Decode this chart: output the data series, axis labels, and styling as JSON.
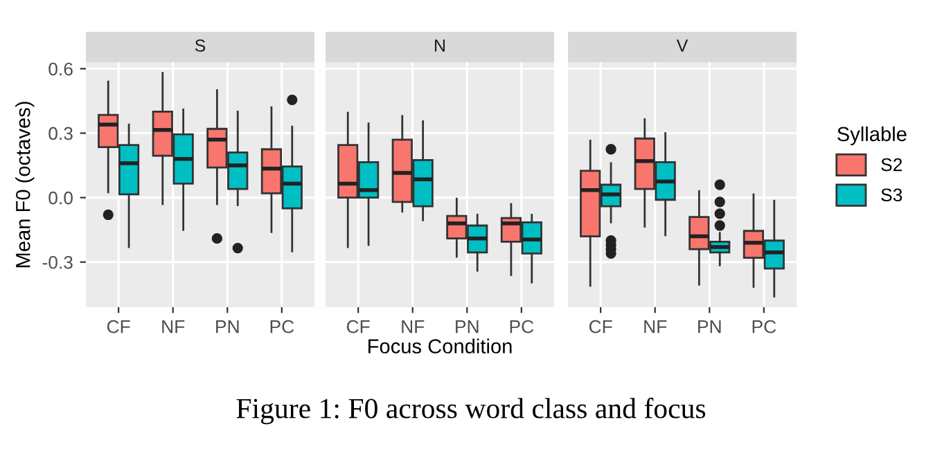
{
  "chart_data": [
    {
      "type": "box",
      "title": "S",
      "ylabel": "Mean F0 (octaves)",
      "legend_title": "Syllable",
      "legend": "right",
      "categories": [
        "CF",
        "NF",
        "PN",
        "PC"
      ],
      "ylim": [
        -0.51,
        0.63
      ],
      "yticks": [
        {
          "value": -0.3,
          "label": "-0.3"
        },
        {
          "value": 0,
          "label": "0.0"
        },
        0.3,
        0.6
      ],
      "grid": true,
      "series": [
        {
          "name": "S2",
          "color": "#f8766d",
          "boxes": [
            {
              "low": 0.025,
              "q1": 0.235,
              "median": 0.34,
              "q3": 0.385,
              "high": 0.54,
              "outliers": [
                -0.08
              ]
            },
            {
              "low": -0.03,
              "q1": 0.195,
              "median": 0.315,
              "q3": 0.4,
              "high": 0.58
            },
            {
              "low": -0.03,
              "q1": 0.14,
              "median": 0.27,
              "q3": 0.32,
              "high": 0.5,
              "outliers": [
                -0.19
              ]
            },
            {
              "low": -0.16,
              "q1": 0.02,
              "median": 0.135,
              "q3": 0.225,
              "high": 0.42
            }
          ]
        },
        {
          "name": "S3",
          "color": "#00bfc4",
          "boxes": [
            {
              "low": -0.23,
              "q1": 0.015,
              "median": 0.16,
              "q3": 0.245,
              "high": 0.34
            },
            {
              "low": -0.15,
              "q1": 0.065,
              "median": 0.18,
              "q3": 0.295,
              "high": 0.41
            },
            {
              "low": -0.035,
              "q1": 0.04,
              "median": 0.15,
              "q3": 0.21,
              "high": 0.4,
              "outliers": [
                -0.235
              ]
            },
            {
              "low": -0.25,
              "q1": -0.05,
              "median": 0.065,
              "q3": 0.145,
              "high": 0.33,
              "outliers": [
                0.455
              ]
            }
          ]
        }
      ]
    },
    {
      "type": "box",
      "title": "N",
      "xlabel": "Focus Condition",
      "categories": [
        "CF",
        "NF",
        "PN",
        "PC"
      ],
      "ylim": [
        -0.51,
        0.63
      ],
      "yticks": [
        -0.3,
        0,
        0.3,
        0.6
      ],
      "grid": true,
      "tick_labels": "x",
      "series": [
        {
          "color": "#f8766d",
          "boxes": [
            {
              "low": -0.23,
              "q1": 0.0,
              "median": 0.065,
              "q3": 0.245,
              "high": 0.395
            },
            {
              "low": -0.065,
              "q1": -0.02,
              "median": 0.115,
              "q3": 0.27,
              "high": 0.38
            },
            {
              "low": -0.275,
              "q1": -0.19,
              "median": -0.12,
              "q3": -0.085,
              "high": -0.005
            },
            {
              "low": -0.36,
              "q1": -0.205,
              "median": -0.12,
              "q3": -0.095,
              "high": -0.03
            }
          ]
        },
        {
          "color": "#00bfc4",
          "boxes": [
            {
              "low": -0.22,
              "q1": 0.0,
              "median": 0.035,
              "q3": 0.165,
              "high": 0.345
            },
            {
              "low": -0.105,
              "q1": -0.04,
              "median": 0.085,
              "q3": 0.175,
              "high": 0.355
            },
            {
              "low": -0.34,
              "q1": -0.255,
              "median": -0.19,
              "q3": -0.13,
              "high": -0.08
            },
            {
              "low": -0.395,
              "q1": -0.26,
              "median": -0.195,
              "q3": -0.115,
              "high": -0.08
            }
          ]
        }
      ]
    },
    {
      "type": "box",
      "title": "V",
      "categories": [
        "CF",
        "NF",
        "PN",
        "PC"
      ],
      "ylim": [
        -0.51,
        0.63
      ],
      "yticks": [
        -0.3,
        0,
        0.3,
        0.6
      ],
      "grid": true,
      "tick_labels": "x",
      "annotations": [
        "Figure 1: F0 across word class and focus"
      ],
      "series": [
        {
          "color": "#f8766d",
          "boxes": [
            {
              "low": -0.41,
              "q1": -0.18,
              "median": 0.035,
              "q3": 0.125,
              "high": 0.265
            },
            {
              "low": -0.135,
              "q1": 0.04,
              "median": 0.17,
              "q3": 0.275,
              "high": 0.365
            },
            {
              "low": -0.405,
              "q1": -0.24,
              "median": -0.18,
              "q3": -0.09,
              "high": 0.03
            },
            {
              "low": -0.415,
              "q1": -0.28,
              "median": -0.21,
              "q3": -0.155,
              "high": 0.015
            }
          ]
        },
        {
          "color": "#00bfc4",
          "boxes": [
            {
              "low": -0.115,
              "q1": -0.04,
              "median": 0.015,
              "q3": 0.06,
              "high": 0.16,
              "outliers": [
                0.225,
                -0.2,
                -0.22,
                -0.24,
                -0.26
              ]
            },
            {
              "low": -0.175,
              "q1": -0.01,
              "median": 0.075,
              "q3": 0.165,
              "high": 0.3
            },
            {
              "low": -0.315,
              "q1": -0.255,
              "median": -0.23,
              "q3": -0.205,
              "high": -0.165,
              "outliers": [
                0.06,
                -0.02,
                -0.075,
                -0.13
              ]
            },
            {
              "low": -0.46,
              "q1": -0.33,
              "median": -0.255,
              "q3": -0.2,
              "high": -0.015
            }
          ]
        }
      ]
    }
  ]
}
